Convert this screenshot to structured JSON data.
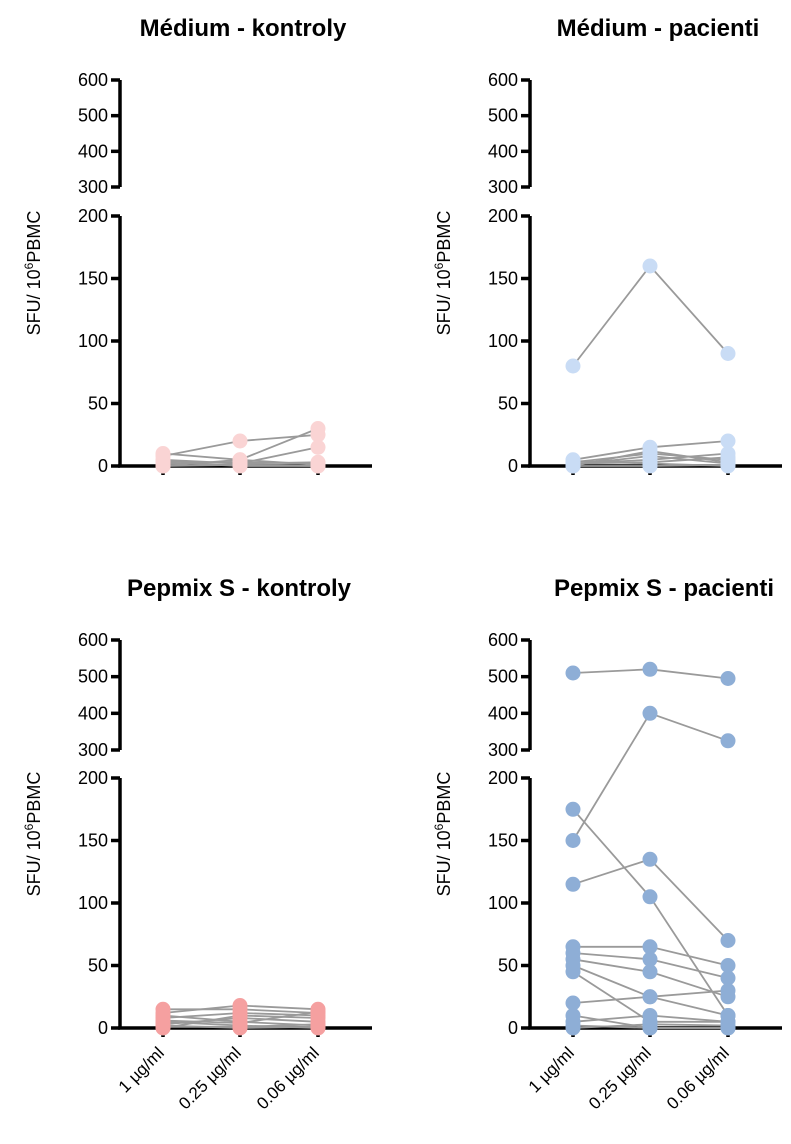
{
  "chart_data": [
    {
      "type": "scatter",
      "title": "Médium - kontroly",
      "ylabel_main": "SFU/ 10",
      "ylabel_sup": "6",
      "ylabel_unit": "PBMC",
      "categories": [
        "1 µg/ml",
        "0.25 µg/ml",
        "0.06 µg/ml"
      ],
      "ylim_lower": [
        0,
        200
      ],
      "ylim_upper": [
        300,
        600
      ],
      "yticks_lower": [
        "0",
        "50",
        "100",
        "150",
        "200"
      ],
      "yticks_upper": [
        "300",
        "400",
        "500",
        "600"
      ],
      "color": "#fad4d4",
      "subjects": [
        [
          10,
          5,
          30
        ],
        [
          8,
          20,
          25
        ],
        [
          5,
          2,
          15
        ],
        [
          3,
          0,
          0
        ],
        [
          0,
          5,
          1
        ],
        [
          2,
          3,
          2
        ],
        [
          0,
          1,
          0
        ],
        [
          4,
          2,
          3
        ]
      ]
    },
    {
      "type": "scatter",
      "title": "Médium - pacienti",
      "ylabel_main": "SFU/ 10",
      "ylabel_sup": "6",
      "ylabel_unit": "PBMC",
      "categories": [
        "1 µg/ml",
        "0.25 µg/ml",
        "0.06 µg/ml"
      ],
      "ylim_lower": [
        0,
        200
      ],
      "ylim_upper": [
        300,
        600
      ],
      "yticks_lower": [
        "0",
        "50",
        "100",
        "150",
        "200"
      ],
      "yticks_upper": [
        "300",
        "400",
        "500",
        "600"
      ],
      "color": "#c9dcf5",
      "subjects": [
        [
          80,
          160,
          90
        ],
        [
          5,
          15,
          20
        ],
        [
          3,
          10,
          5
        ],
        [
          2,
          5,
          10
        ],
        [
          0,
          12,
          3
        ],
        [
          4,
          2,
          0
        ],
        [
          1,
          8,
          2
        ],
        [
          0,
          0,
          1
        ],
        [
          2,
          3,
          7
        ]
      ]
    },
    {
      "type": "scatter",
      "title": "Pepmix S - kontroly",
      "ylabel_main": "SFU/ 10",
      "ylabel_sup": "6",
      "ylabel_unit": "PBMC",
      "categories": [
        "1 µg/ml",
        "0.25 µg/ml",
        "0.06 µg/ml"
      ],
      "ylim_lower": [
        0,
        200
      ],
      "ylim_upper": [
        300,
        600
      ],
      "yticks_lower": [
        "0",
        "50",
        "100",
        "150",
        "200"
      ],
      "yticks_upper": [
        "300",
        "400",
        "500",
        "600"
      ],
      "color": "#f5a0a0",
      "subjects": [
        [
          15,
          15,
          12
        ],
        [
          12,
          18,
          15
        ],
        [
          10,
          5,
          2
        ],
        [
          8,
          12,
          10
        ],
        [
          5,
          2,
          0
        ],
        [
          3,
          8,
          5
        ],
        [
          0,
          10,
          8
        ],
        [
          2,
          0,
          1
        ],
        [
          6,
          4,
          13
        ],
        [
          1,
          1,
          3
        ]
      ]
    },
    {
      "type": "scatter",
      "title": "Pepmix S - pacienti",
      "ylabel_main": "SFU/ 10",
      "ylabel_sup": "6",
      "ylabel_unit": "PBMC",
      "categories": [
        "1 µg/ml",
        "0.25 µg/ml",
        "0.06 µg/ml"
      ],
      "ylim_lower": [
        0,
        200
      ],
      "ylim_upper": [
        300,
        600
      ],
      "yticks_lower": [
        "0",
        "50",
        "100",
        "150",
        "200"
      ],
      "yticks_upper": [
        "300",
        "400",
        "500",
        "600"
      ],
      "color": "#8eaed6",
      "subjects": [
        [
          510,
          520,
          495
        ],
        [
          150,
          400,
          325
        ],
        [
          175,
          105,
          10
        ],
        [
          115,
          135,
          70
        ],
        [
          65,
          65,
          50
        ],
        [
          60,
          55,
          40
        ],
        [
          55,
          45,
          25
        ],
        [
          50,
          25,
          30
        ],
        [
          45,
          5,
          5
        ],
        [
          20,
          25,
          10
        ],
        [
          10,
          0,
          0
        ],
        [
          5,
          10,
          5
        ],
        [
          2,
          0,
          0
        ],
        [
          0,
          3,
          2
        ]
      ]
    }
  ]
}
